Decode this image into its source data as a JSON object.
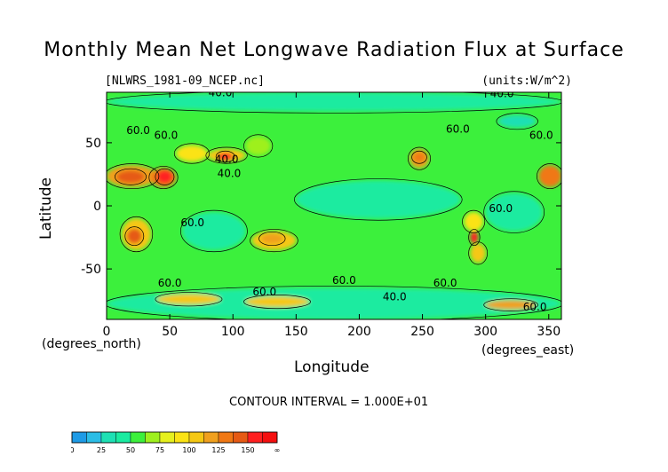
{
  "chart_data": {
    "type": "heatmap",
    "title": "Monthly Mean Net Longwave Radiation Flux at Surface",
    "file_label": "[NLWRS_1981-09_NCEP.nc]",
    "units_label": "(units:W/m^2)",
    "xlabel": "Longitude",
    "ylabel": "Latitude",
    "x_unit_label": "(degrees_east)",
    "y_unit_label": "(degrees_north)",
    "xlim": [
      0,
      360
    ],
    "ylim": [
      -90,
      90
    ],
    "x_ticks": [
      "0",
      "50",
      "100",
      "150",
      "200",
      "250",
      "300",
      "350"
    ],
    "x_tick_values": [
      0,
      50,
      100,
      150,
      200,
      250,
      300,
      350
    ],
    "y_ticks": [
      "50",
      "0",
      "-50"
    ],
    "y_tick_values": [
      50,
      0,
      -50
    ],
    "contour_interval_text": "CONTOUR INTERVAL = 1.000E+01",
    "contour_labels": [
      {
        "text": "40.0",
        "lon": 90,
        "lat": 87
      },
      {
        "text": "40.0",
        "lon": 313,
        "lat": 86
      },
      {
        "text": "60.0",
        "lon": 25,
        "lat": 57
      },
      {
        "text": "60.0",
        "lon": 47,
        "lat": 53
      },
      {
        "text": "60.0",
        "lon": 278,
        "lat": 58
      },
      {
        "text": "60.0",
        "lon": 344,
        "lat": 53
      },
      {
        "text": "40.0",
        "lon": 95,
        "lat": 34
      },
      {
        "text": "40.0",
        "lon": 97,
        "lat": 23
      },
      {
        "text": "60.0",
        "lon": 68,
        "lat": -16
      },
      {
        "text": "60.0",
        "lon": 312,
        "lat": -5
      },
      {
        "text": "60.0",
        "lon": 50,
        "lat": -64
      },
      {
        "text": "60.0",
        "lon": 125,
        "lat": -71
      },
      {
        "text": "60.0",
        "lon": 188,
        "lat": -62
      },
      {
        "text": "60.0",
        "lon": 268,
        "lat": -64
      },
      {
        "text": "40.0",
        "lon": 228,
        "lat": -75
      },
      {
        "text": "60.0",
        "lon": 339,
        "lat": -83
      }
    ],
    "colorbar": {
      "ticks": [
        "0",
        "25",
        "50",
        "75",
        "100",
        "125",
        "150",
        "∞"
      ],
      "bins": [
        {
          "from": 0,
          "color": "#1e9be6"
        },
        {
          "from": 12.5,
          "color": "#2bbde6"
        },
        {
          "from": 25,
          "color": "#1ee0b4"
        },
        {
          "from": 37.5,
          "color": "#1aeba0"
        },
        {
          "from": 50,
          "color": "#3cf03c"
        },
        {
          "from": 62.5,
          "color": "#9ef01e"
        },
        {
          "from": 75,
          "color": "#e6f01e"
        },
        {
          "from": 87.5,
          "color": "#fbe314"
        },
        {
          "from": 100,
          "color": "#f5c814"
        },
        {
          "from": 112.5,
          "color": "#f0a01e"
        },
        {
          "from": 125,
          "color": "#f07814"
        },
        {
          "from": 137.5,
          "color": "#e65a14"
        },
        {
          "from": 150,
          "color": "#ff2020"
        },
        {
          "from": 162.5,
          "color": "#f50f0f"
        }
      ]
    },
    "background_level": 55,
    "features": [
      {
        "name": "antarctic-band",
        "lon": [
          0,
          360
        ],
        "lat": [
          -90,
          -65
        ],
        "level": 45
      },
      {
        "name": "arctic-band",
        "lon": [
          0,
          360
        ],
        "lat": [
          75,
          90
        ],
        "level": 40
      },
      {
        "name": "pacific-tropical-calm",
        "lon": [
          150,
          280
        ],
        "lat": [
          -10,
          20
        ],
        "level": 45
      },
      {
        "name": "indian-ocean-calm",
        "lon": [
          60,
          110
        ],
        "lat": [
          -35,
          -5
        ],
        "level": 42
      },
      {
        "name": "atlantic-calm",
        "lon": [
          300,
          345
        ],
        "lat": [
          -20,
          10
        ],
        "level": 45
      },
      {
        "name": "sahara",
        "lon": [
          0,
          40
        ],
        "lat": [
          15,
          32
        ],
        "level": 120
      },
      {
        "name": "sahara-core",
        "lon": [
          8,
          30
        ],
        "lat": [
          18,
          28
        ],
        "level": 145
      },
      {
        "name": "arabia",
        "lon": [
          35,
          55
        ],
        "lat": [
          15,
          30
        ],
        "level": 125
      },
      {
        "name": "arabia-core",
        "lon": [
          40,
          52
        ],
        "lat": [
          18,
          28
        ],
        "level": 150
      },
      {
        "name": "western-sahara",
        "lon": [
          342,
          360
        ],
        "lat": [
          15,
          32
        ],
        "level": 125
      },
      {
        "name": "central-asia",
        "lon": [
          55,
          80
        ],
        "lat": [
          35,
          48
        ],
        "level": 90
      },
      {
        "name": "tibet-gobi",
        "lon": [
          80,
          110
        ],
        "lat": [
          35,
          45
        ],
        "level": 105
      },
      {
        "name": "tibet-core",
        "lon": [
          88,
          100
        ],
        "lat": [
          36,
          42
        ],
        "level": 150
      },
      {
        "name": "north-america-west",
        "lon": [
          240,
          255
        ],
        "lat": [
          30,
          45
        ],
        "level": 115
      },
      {
        "name": "north-america-core",
        "lon": [
          243,
          252
        ],
        "lat": [
          35,
          42
        ],
        "level": 130
      },
      {
        "name": "southern-africa",
        "lon": [
          12,
          35
        ],
        "lat": [
          -35,
          -10
        ],
        "level": 100
      },
      {
        "name": "kalahari-core",
        "lon": [
          16,
          28
        ],
        "lat": [
          -30,
          -18
        ],
        "level": 140
      },
      {
        "name": "australia",
        "lon": [
          115,
          150
        ],
        "lat": [
          -35,
          -20
        ],
        "level": 100
      },
      {
        "name": "australia-core",
        "lon": [
          122,
          140
        ],
        "lat": [
          -30,
          -22
        ],
        "level": 120
      },
      {
        "name": "andes-north",
        "lon": [
          283,
          298
        ],
        "lat": [
          -20,
          -5
        ],
        "level": 95
      },
      {
        "name": "andes-core",
        "lon": [
          288,
          294
        ],
        "lat": [
          -30,
          -20
        ],
        "level": 160
      },
      {
        "name": "patagonia",
        "lon": [
          288,
          300
        ],
        "lat": [
          -45,
          -30
        ],
        "level": 100
      },
      {
        "name": "east-asia-coast",
        "lon": [
          110,
          130
        ],
        "lat": [
          40,
          55
        ],
        "level": 70
      },
      {
        "name": "antarctic-coast-a",
        "lon": [
          40,
          90
        ],
        "lat": [
          -78,
          -70
        ],
        "level": 110
      },
      {
        "name": "antarctic-coast-b",
        "lon": [
          110,
          160
        ],
        "lat": [
          -80,
          -72
        ],
        "level": 100
      },
      {
        "name": "antarctic-coast-c",
        "lon": [
          300,
          340
        ],
        "lat": [
          -82,
          -75
        ],
        "level": 115
      },
      {
        "name": "greenland-edge",
        "lon": [
          310,
          340
        ],
        "lat": [
          62,
          72
        ],
        "level": 25
      }
    ]
  }
}
